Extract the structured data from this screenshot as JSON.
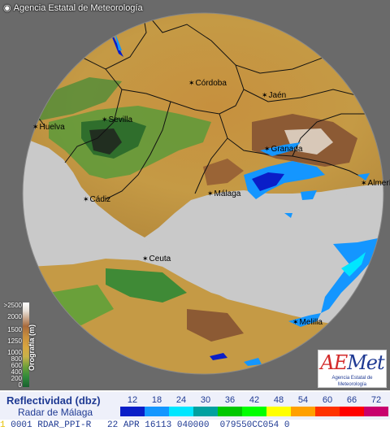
{
  "credit": {
    "text": "Agencia Estatal de Meteorología"
  },
  "cities": [
    {
      "name": "Córdoba"
    },
    {
      "name": "Jaén"
    },
    {
      "name": "Sevilla"
    },
    {
      "name": "Huelva"
    },
    {
      "name": "Granada"
    },
    {
      "name": "Málaga"
    },
    {
      "name": "Almería"
    },
    {
      "name": "Cádiz"
    },
    {
      "name": "Ceuta"
    },
    {
      "name": "Melilla"
    }
  ],
  "orography_legend": {
    "title": "Orografía (m)",
    "ticks": [
      ">2500",
      "2000",
      "1500",
      "1250",
      "1000",
      "800",
      "600",
      "400",
      "200",
      "0"
    ]
  },
  "logo": {
    "brand_a": "A",
    "brand_e": "E",
    "brand_rest": "Met",
    "subtitle": "Agencia Estatal de Meteorología"
  },
  "reflectivity": {
    "title": "Reflectividad (dbz)",
    "radar": "Radar de Málaga",
    "levels": [
      "12",
      "18",
      "24",
      "30",
      "36",
      "42",
      "48",
      "54",
      "60",
      "66",
      "72"
    ],
    "colors": [
      "#0a1ec8",
      "#1496ff",
      "#00e6ff",
      "#00a0a0",
      "#00c800",
      "#00ff00",
      "#ffff00",
      "#ffa000",
      "#ff3200",
      "#ff0000",
      "#c8006e"
    ]
  },
  "status": {
    "prefix": "1",
    "line": "0001 RDAR_PPI-R   22 APR 16113 040000  079550CC054 0"
  }
}
